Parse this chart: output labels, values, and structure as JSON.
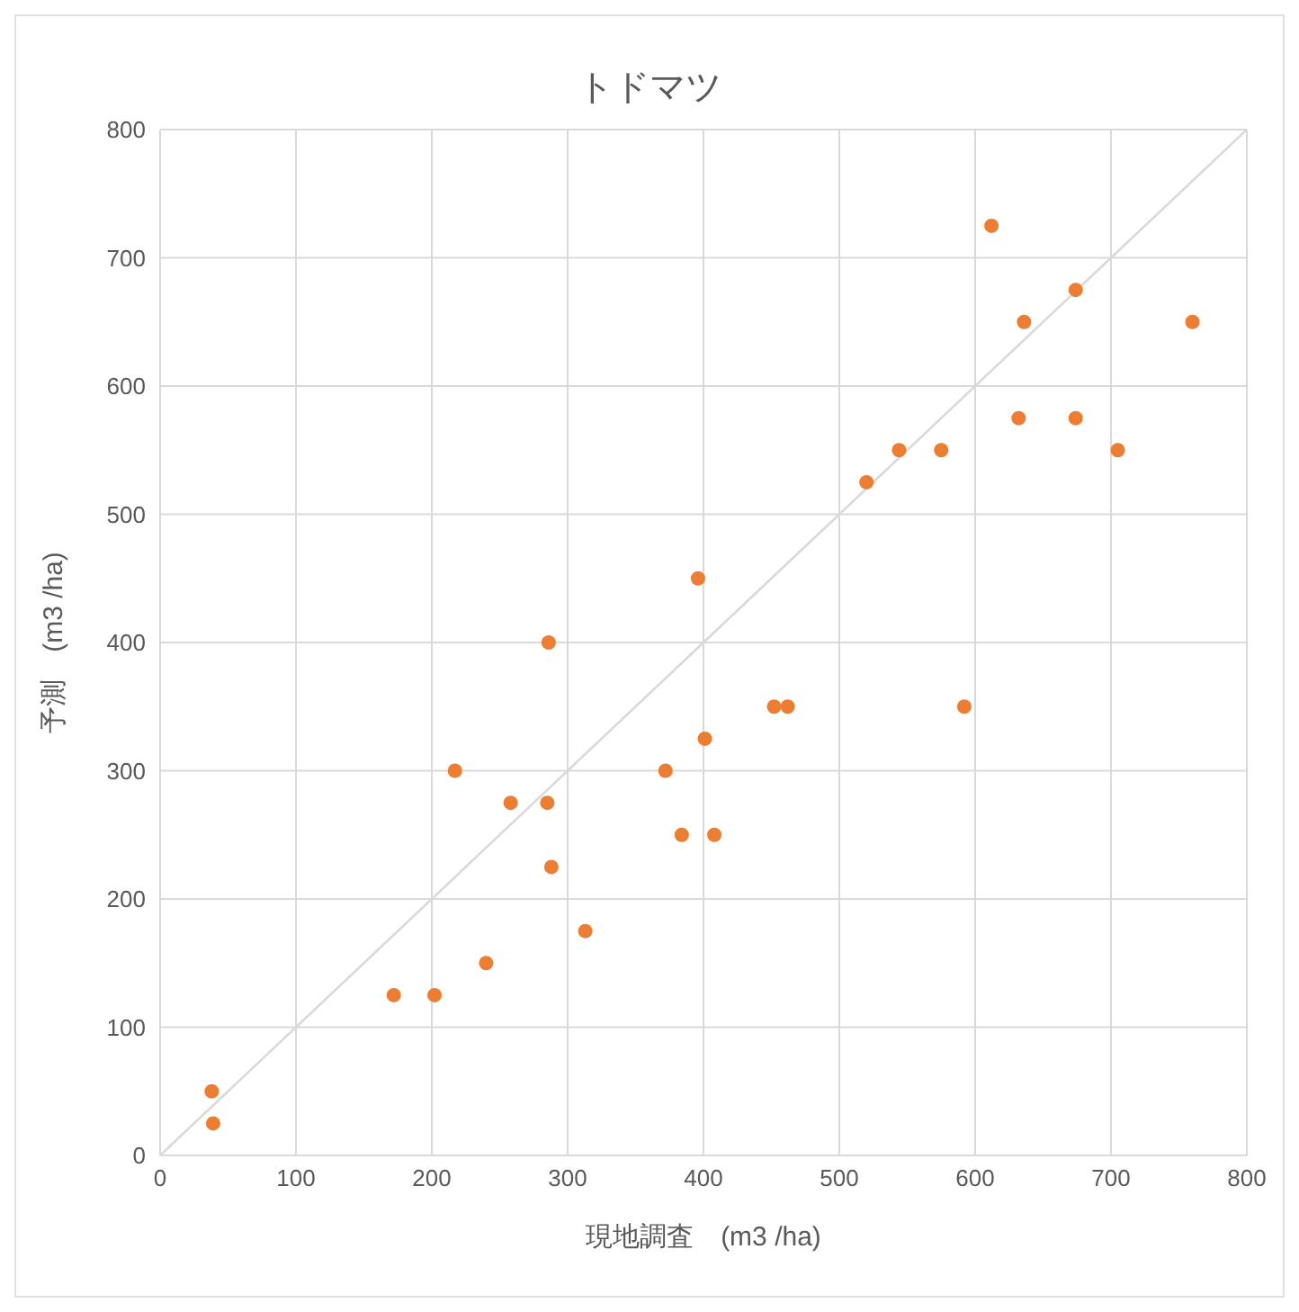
{
  "chart_data": {
    "type": "scatter",
    "title": "トドマツ",
    "xlabel": "現地調査　(m3 /ha)",
    "ylabel": "予測　(m3 /ha)",
    "xlim": [
      0,
      800
    ],
    "ylim": [
      0,
      800
    ],
    "xticks": [
      0,
      100,
      200,
      300,
      400,
      500,
      600,
      700,
      800
    ],
    "yticks": [
      0,
      100,
      200,
      300,
      400,
      500,
      600,
      700,
      800
    ],
    "grid": true,
    "legend": false,
    "marker": "circle",
    "series": [
      {
        "type": "line",
        "color": "#d9d9d9",
        "marker": "none",
        "x": [
          0,
          800
        ],
        "values": [
          0,
          800
        ]
      },
      {
        "color": "#ed7d31",
        "x": [
          38,
          39,
          172,
          202,
          240,
          217,
          258,
          285,
          286,
          288,
          313,
          372,
          384,
          408,
          401,
          396,
          452,
          462,
          592,
          520,
          544,
          575,
          612,
          632,
          636,
          674,
          674,
          705,
          760
        ],
        "values": [
          50,
          25,
          125,
          125,
          150,
          300,
          275,
          275,
          400,
          225,
          175,
          300,
          250,
          250,
          325,
          450,
          350,
          350,
          350,
          525,
          550,
          550,
          725,
          575,
          650,
          675,
          575,
          550,
          650
        ]
      }
    ]
  }
}
